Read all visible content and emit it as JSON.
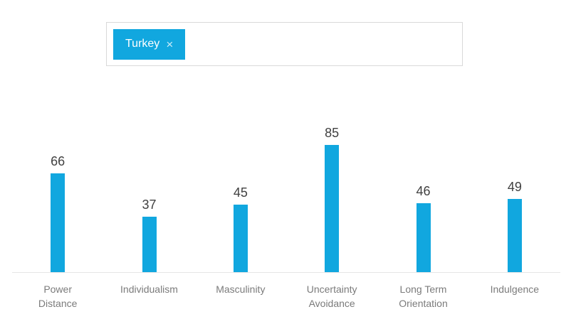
{
  "selector": {
    "selected_country": "Turkey",
    "remove_icon": "×"
  },
  "chart_data": {
    "type": "bar",
    "categories": [
      "Power Distance",
      "Individualism",
      "Masculinity",
      "Uncertainty Avoidance",
      "Long Term Orientation",
      "Indulgence"
    ],
    "category_lines": [
      [
        "Power",
        "Distance"
      ],
      [
        "Individualism"
      ],
      [
        "Masculinity"
      ],
      [
        "Uncertainty",
        "Avoidance"
      ],
      [
        "Long Term",
        "Orientation"
      ],
      [
        "Indulgence"
      ]
    ],
    "series": [
      {
        "name": "Turkey",
        "values": [
          66,
          37,
          45,
          85,
          46,
          49
        ]
      }
    ],
    "title": "",
    "xlabel": "",
    "ylabel": "",
    "ylim": [
      0,
      100
    ],
    "grid": false,
    "legend_shown": false,
    "value_labels_shown": true,
    "bar_color": "#11A7DF"
  },
  "colors": {
    "accent": "#11A7DF",
    "box_border": "#D9D9D9",
    "axis_line": "#E6E6E6",
    "value_text": "#404040",
    "label_text": "#7B7B7B"
  }
}
